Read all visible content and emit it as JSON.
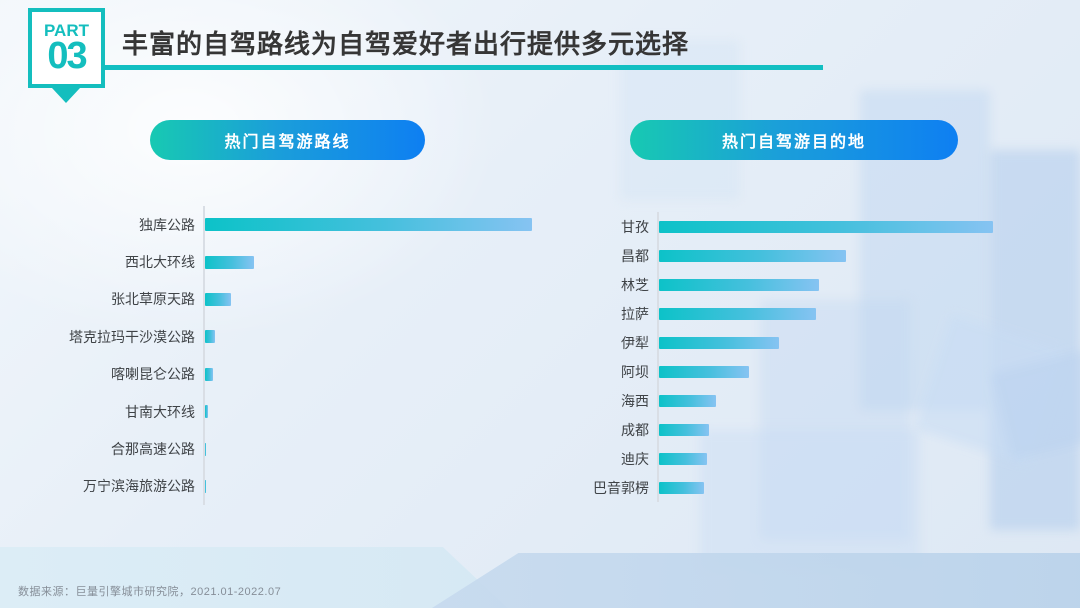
{
  "header": {
    "part_label": "PART",
    "part_number": "03",
    "title": "丰富的自驾路线为自驾爱好者出行提供多元选择"
  },
  "chart_data": [
    {
      "type": "bar",
      "orientation": "horizontal",
      "title": "热门自驾游路线",
      "categories": [
        "独库公路",
        "西北大环线",
        "张北草原天路",
        "塔克拉玛干沙漠公路",
        "喀喇昆仑公路",
        "甘南大环线",
        "合那高速公路",
        "万宁滨海旅游公路"
      ],
      "values": [
        100,
        15,
        8,
        3,
        2.5,
        1,
        0.4,
        0.2
      ],
      "xlabel": "",
      "ylabel": "",
      "xlim": [
        0,
        100
      ],
      "value_note": "relative popularity index estimated from bar pixel lengths; no numeric axis shown in source",
      "grid": false,
      "legend": false
    },
    {
      "type": "bar",
      "orientation": "horizontal",
      "title": "热门自驾游目的地",
      "categories": [
        "甘孜",
        "昌都",
        "林芝",
        "拉萨",
        "伊犁",
        "阿坝",
        "海西",
        "成都",
        "迪庆",
        "巴音郭楞"
      ],
      "values": [
        100,
        56,
        48,
        47,
        36,
        27,
        17,
        15,
        14.5,
        13.5
      ],
      "xlabel": "",
      "ylabel": "",
      "xlim": [
        0,
        100
      ],
      "value_note": "relative popularity index estimated from bar pixel lengths; no numeric axis shown in source",
      "grid": false,
      "legend": false
    }
  ],
  "footer": {
    "source": "数据来源：巨量引擎城市研究院，2021.01-2022.07"
  },
  "colors": {
    "accent_teal": "#14bebe",
    "title_rule": "#12bfc2",
    "pill_gradient_start": "#17c9b2",
    "pill_gradient_end": "#0e7ff2",
    "bar_gradient_start": "#0cc2c8",
    "bar_gradient_end": "#86c3f2",
    "title_text": "#363636",
    "label_text": "#3f4347",
    "source_text": "#868e98",
    "background": "#e7eff8"
  }
}
